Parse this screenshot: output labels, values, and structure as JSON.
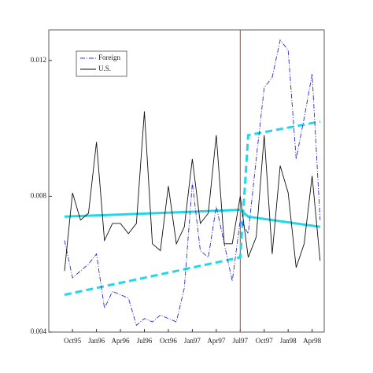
{
  "chart_data": {
    "type": "line",
    "categories": [
      null,
      "Oct95",
      null,
      null,
      "Jan96",
      null,
      null,
      "Apr96",
      null,
      null,
      "Jul96",
      null,
      null,
      "Oct96",
      null,
      null,
      "Jan97",
      null,
      null,
      "Apr97",
      null,
      null,
      "Jul97",
      null,
      null,
      "Oct97",
      null,
      null,
      "Jan98",
      null,
      null,
      "Apr98",
      null
    ],
    "series": [
      {
        "name": "Foreign",
        "color": "#2a2ad0",
        "dash": "6 2 1 2",
        "values": [
          0.0067,
          0.0056,
          0.0058,
          0.006,
          0.0063,
          0.0047,
          0.0052,
          0.0051,
          0.005,
          0.0042,
          0.0044,
          0.0043,
          0.0045,
          0.0044,
          0.0043,
          0.0053,
          0.0084,
          0.0064,
          0.0062,
          0.0077,
          0.0066,
          0.0055,
          0.0073,
          0.0069,
          0.0091,
          0.0112,
          0.0115,
          0.0126,
          0.0123,
          0.0091,
          0.0103,
          0.0116,
          0.0073
        ]
      },
      {
        "name": "U.S.",
        "color": "#111111",
        "dash": "none",
        "values": [
          0.0058,
          0.0081,
          0.0073,
          0.0075,
          0.0096,
          0.0067,
          0.0072,
          0.0072,
          0.0069,
          0.0072,
          0.0105,
          0.0066,
          0.0064,
          0.0083,
          0.0066,
          0.0071,
          0.0091,
          0.0072,
          0.0075,
          0.0098,
          0.0066,
          0.0066,
          0.008,
          0.0062,
          0.0068,
          0.0098,
          0.0063,
          0.0089,
          0.0081,
          0.0059,
          0.0066,
          0.0086,
          0.0061
        ]
      }
    ],
    "trend_lines": [
      {
        "color": "#22d8e8",
        "dash": "none",
        "x": [
          0,
          22,
          23,
          32
        ],
        "values": [
          0.0074,
          0.0076,
          0.0074,
          0.0071
        ]
      },
      {
        "color": "#22d8e8",
        "dash": "9 5",
        "x": [
          0,
          22,
          23,
          32
        ],
        "values": [
          0.0051,
          0.0062,
          0.0098,
          0.0102
        ]
      }
    ],
    "event_line": {
      "x": 22,
      "color": "#d03030"
    },
    "ylim": [
      0.004,
      0.0129
    ],
    "yticks": [
      0.004,
      0.008,
      0.012
    ],
    "legend": "upper left"
  }
}
